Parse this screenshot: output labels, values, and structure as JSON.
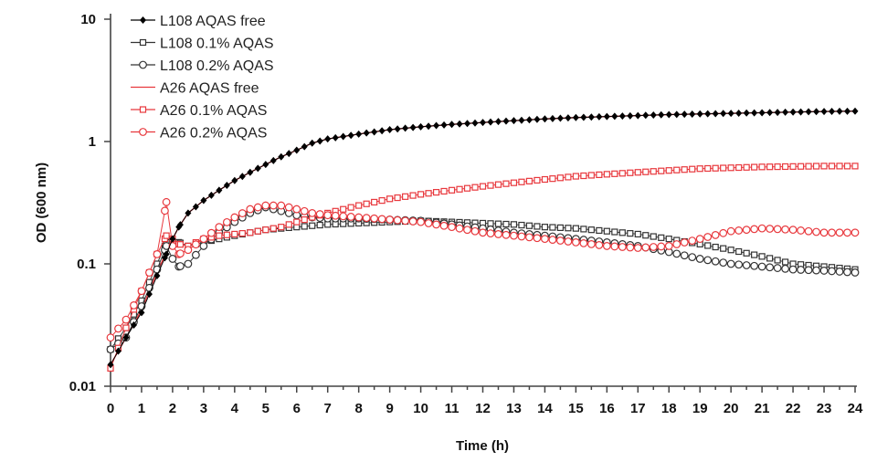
{
  "chart_data": {
    "type": "line",
    "title": "",
    "xlabel": "Time (h)",
    "ylabel": "OD (600 nm)",
    "yscale": "log",
    "xlim": [
      0,
      24
    ],
    "ylim": [
      0.01,
      10
    ],
    "xticks": [
      "0",
      "1",
      "2",
      "3",
      "4",
      "5",
      "6",
      "7",
      "8",
      "9",
      "10",
      "11",
      "12",
      "13",
      "14",
      "15",
      "16",
      "17",
      "18",
      "19",
      "20",
      "21",
      "22",
      "23",
      "24"
    ],
    "yticks": [
      {
        "value": 10,
        "label": "10"
      },
      {
        "value": 1,
        "label": "1"
      },
      {
        "value": 0.1,
        "label": "0.1"
      },
      {
        "value": 0.01,
        "label": "0.01"
      }
    ],
    "grid": false,
    "legend_position": "top-left",
    "x": [
      0,
      0.5,
      1,
      1.5,
      1.8,
      2,
      2.2,
      2.5,
      3,
      3.5,
      4,
      4.5,
      5,
      5.5,
      6,
      6.5,
      7,
      8,
      9,
      10,
      11,
      12,
      13,
      14,
      15,
      16,
      17,
      18,
      19,
      20,
      21,
      22,
      23,
      24
    ],
    "series": [
      {
        "name": "L108 AQAS free",
        "color": "#000000",
        "marker": "diamond-filled",
        "values": [
          0.015,
          0.025,
          0.04,
          0.08,
          0.12,
          0.16,
          0.2,
          0.26,
          0.33,
          0.4,
          0.48,
          0.56,
          0.65,
          0.75,
          0.85,
          0.97,
          1.05,
          1.15,
          1.25,
          1.32,
          1.38,
          1.43,
          1.48,
          1.53,
          1.57,
          1.6,
          1.63,
          1.66,
          1.68,
          1.7,
          1.72,
          1.74,
          1.76,
          1.77
        ]
      },
      {
        "name": "L108 0.1% AQAS",
        "color": "#333333",
        "marker": "square-open",
        "values": [
          0.02,
          0.03,
          0.05,
          0.1,
          0.15,
          0.16,
          0.15,
          0.14,
          0.15,
          0.16,
          0.17,
          0.18,
          0.19,
          0.195,
          0.2,
          0.205,
          0.21,
          0.215,
          0.22,
          0.225,
          0.22,
          0.215,
          0.21,
          0.2,
          0.195,
          0.185,
          0.175,
          0.16,
          0.145,
          0.13,
          0.115,
          0.1,
          0.095,
          0.09
        ]
      },
      {
        "name": "L108 0.2% AQAS",
        "color": "#333333",
        "marker": "circle-open",
        "values": [
          0.02,
          0.025,
          0.045,
          0.09,
          0.14,
          0.11,
          0.095,
          0.1,
          0.14,
          0.18,
          0.22,
          0.26,
          0.29,
          0.27,
          0.25,
          0.24,
          0.235,
          0.235,
          0.23,
          0.225,
          0.21,
          0.195,
          0.18,
          0.17,
          0.16,
          0.15,
          0.14,
          0.125,
          0.11,
          0.1,
          0.095,
          0.09,
          0.088,
          0.085
        ]
      },
      {
        "name": "A26 AQAS free",
        "color": "#e8383d",
        "marker": "none",
        "values": [
          0.015,
          0.025,
          0.042,
          0.085,
          0.125,
          0.16,
          0.2,
          0.26,
          0.33,
          0.4,
          0.48,
          0.56,
          0.65,
          0.75,
          0.85,
          0.97,
          1.05,
          1.15,
          1.25,
          1.32,
          1.38,
          1.43,
          1.48,
          1.53,
          1.57,
          1.6,
          1.63,
          1.66,
          1.68,
          1.7,
          1.72,
          1.74,
          1.76,
          1.77
        ]
      },
      {
        "name": "A26 0.1% AQAS",
        "color": "#e8383d",
        "marker": "square-open",
        "values": [
          0.014,
          0.03,
          0.06,
          0.12,
          0.17,
          0.16,
          0.145,
          0.14,
          0.16,
          0.17,
          0.175,
          0.18,
          0.19,
          0.2,
          0.22,
          0.24,
          0.26,
          0.3,
          0.34,
          0.37,
          0.4,
          0.43,
          0.46,
          0.49,
          0.52,
          0.54,
          0.56,
          0.58,
          0.6,
          0.61,
          0.62,
          0.625,
          0.63,
          0.63
        ]
      },
      {
        "name": "A26 0.2% AQAS",
        "color": "#e8383d",
        "marker": "circle-open",
        "values": [
          0.025,
          0.035,
          0.06,
          0.12,
          0.32,
          0.14,
          0.12,
          0.13,
          0.16,
          0.2,
          0.24,
          0.28,
          0.3,
          0.3,
          0.28,
          0.26,
          0.25,
          0.24,
          0.23,
          0.22,
          0.2,
          0.18,
          0.17,
          0.16,
          0.15,
          0.14,
          0.135,
          0.14,
          0.16,
          0.185,
          0.195,
          0.19,
          0.18,
          0.18
        ]
      }
    ]
  }
}
